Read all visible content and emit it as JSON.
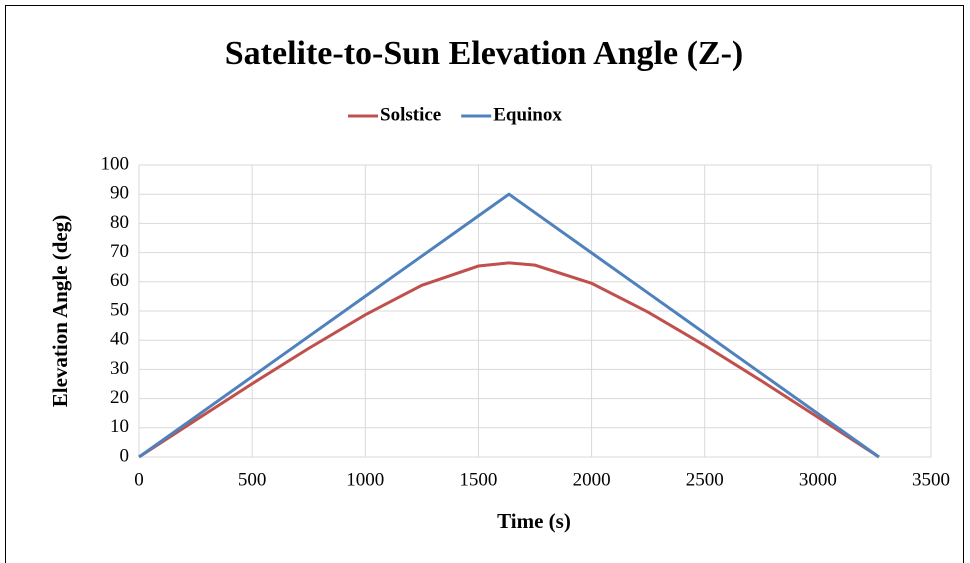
{
  "chart_data": {
    "type": "line",
    "title": "Satelite-to-Sun Elevation Angle (Z-)",
    "xlabel": "Time (s)",
    "ylabel": "Elevation Angle (deg)",
    "x": [
      0,
      250,
      500,
      750,
      1000,
      1250,
      1500,
      1635,
      1750,
      2000,
      2250,
      2500,
      2750,
      3000,
      3270
    ],
    "series": [
      {
        "name": "Solstice",
        "color": "#c0504d",
        "values": [
          0,
          12.6,
          25.1,
          37.2,
          48.7,
          58.8,
          65.4,
          66.5,
          65.7,
          59.5,
          49.6,
          38.2,
          26.1,
          13.6,
          0
        ]
      },
      {
        "name": "Equinox",
        "color": "#4f81bd",
        "values": [
          0,
          13.76,
          27.52,
          41.28,
          55.05,
          68.81,
          82.57,
          90,
          83.67,
          69.91,
          56.15,
          42.39,
          28.62,
          14.86,
          0
        ]
      }
    ],
    "xlim": [
      0,
      3500
    ],
    "xticks": [
      0,
      500,
      1000,
      1500,
      2000,
      2500,
      3000,
      3500
    ],
    "ylim": [
      0,
      100
    ],
    "yticks": [
      0,
      10,
      20,
      30,
      40,
      50,
      60,
      70,
      80,
      90,
      100
    ],
    "grid": true,
    "legend": "top"
  }
}
